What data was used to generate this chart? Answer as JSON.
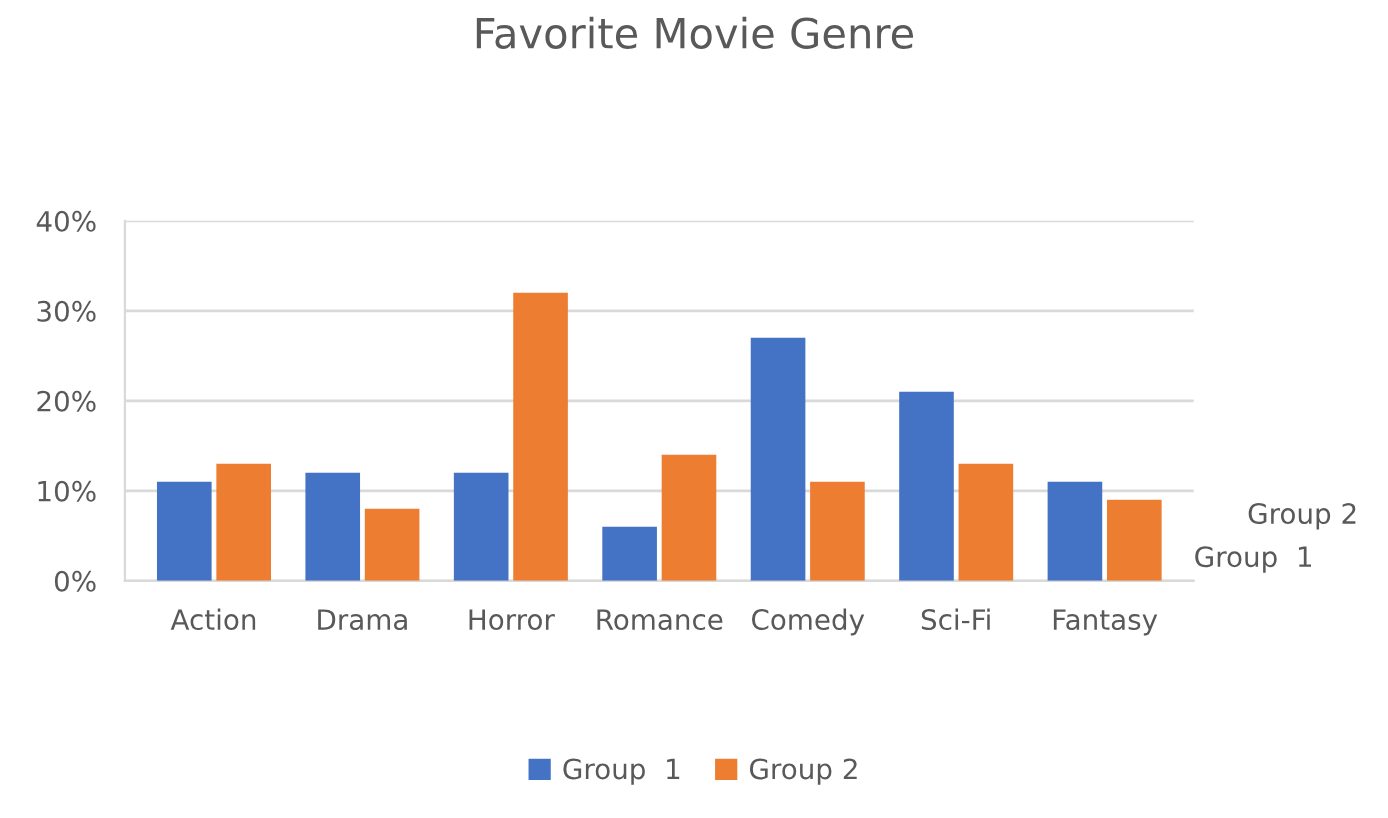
{
  "chart_data": {
    "type": "bar",
    "title": "Favorite Movie Genre",
    "categories": [
      "Action",
      "Drama",
      "Horror",
      "Romance",
      "Comedy",
      "Sci-Fi",
      "Fantasy"
    ],
    "series": [
      {
        "name": "Group  1",
        "color": "#4472c4",
        "values": [
          11,
          12,
          12,
          6,
          27,
          21,
          11
        ]
      },
      {
        "name": "Group 2",
        "color": "#ed7d31",
        "values": [
          13,
          8,
          32,
          14,
          11,
          13,
          9
        ]
      }
    ],
    "ylim": [
      0,
      40
    ],
    "yticks": [
      {
        "value": 0,
        "label": "0%"
      },
      {
        "value": 10,
        "label": "10%"
      },
      {
        "value": 20,
        "label": "20%"
      },
      {
        "value": 30,
        "label": "30%"
      },
      {
        "value": 40,
        "label": "40%"
      }
    ],
    "grid": "y",
    "legend": "bottom"
  }
}
